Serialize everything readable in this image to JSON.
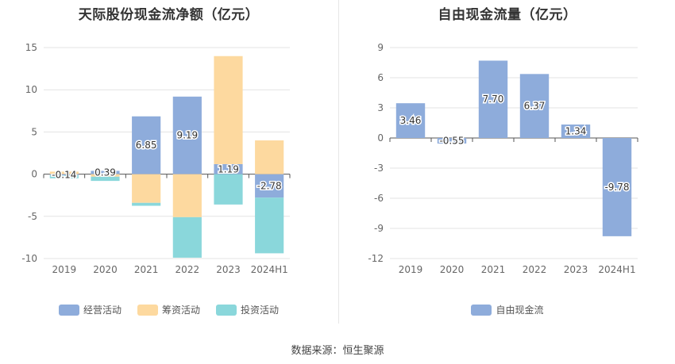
{
  "chart_data": [
    {
      "type": "bar",
      "stacked": true,
      "title": "天际股份现金流净额（亿元）",
      "categories": [
        "2019",
        "2020",
        "2021",
        "2022",
        "2023",
        "2024H1"
      ],
      "ylim": [
        -10,
        15
      ],
      "yticks": [
        15,
        10,
        5,
        0,
        -5,
        -10
      ],
      "grid": true,
      "legend_position": "bottom",
      "series": [
        {
          "name": "经营活动",
          "color": "#8eacdb",
          "values": [
            -0.14,
            0.39,
            6.85,
            9.19,
            1.19,
            -2.78
          ]
        },
        {
          "name": "筹资活动",
          "color": "#fdd99f",
          "values": [
            0.3,
            -0.3,
            -3.4,
            -5.1,
            12.8,
            4.0
          ]
        },
        {
          "name": "投资活动",
          "color": "#8ad7db",
          "values": [
            -0.35,
            -0.5,
            -0.35,
            -4.8,
            -3.6,
            -6.6
          ]
        }
      ],
      "data_labels": [
        "-0.14",
        "0.39",
        "6.85",
        "9.19",
        "1.19",
        "-2.78"
      ]
    },
    {
      "type": "bar",
      "title": "自由现金流量（亿元）",
      "categories": [
        "2019",
        "2020",
        "2021",
        "2022",
        "2023",
        "2024H1"
      ],
      "ylim": [
        -12,
        9
      ],
      "yticks": [
        9,
        6,
        3,
        0,
        -3,
        -6,
        -9,
        -12
      ],
      "grid": true,
      "legend_position": "bottom",
      "series": [
        {
          "name": "自由现金流",
          "color": "#8eacdb",
          "values": [
            3.46,
            -0.55,
            7.7,
            6.37,
            1.34,
            -9.78
          ]
        }
      ],
      "data_labels": [
        "3.46",
        "-0.55",
        "7.70",
        "6.37",
        "1.34",
        "-9.78"
      ]
    }
  ],
  "footer": {
    "source": "数据来源：恒生聚源"
  }
}
